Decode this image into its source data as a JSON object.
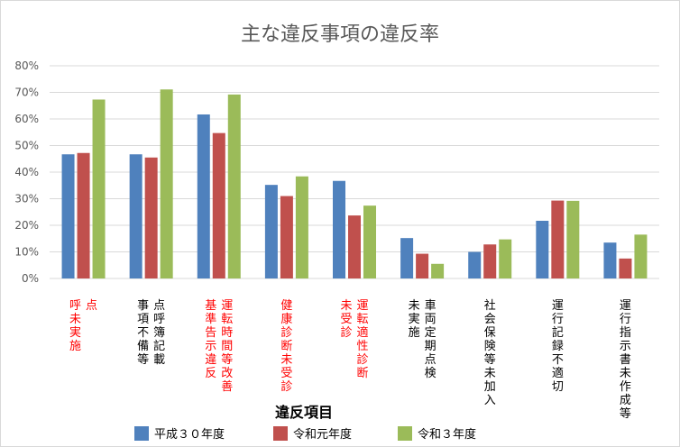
{
  "chart_data": {
    "type": "bar",
    "title": "主な違反事項の違反率",
    "xlabel": "違反項目",
    "ylabel": "",
    "ylim": [
      0,
      0.8
    ],
    "yticks": [
      "0%",
      "10%",
      "20%",
      "30%",
      "40%",
      "50%",
      "60%",
      "70%",
      "80%"
    ],
    "grid": true,
    "legend_position": "bottom",
    "categories": [
      {
        "lines": [
          "点",
          "呼未実施"
        ],
        "color": "#ff0000"
      },
      {
        "lines": [
          "点呼簿記載",
          "事項不備等"
        ],
        "color": "#000000"
      },
      {
        "lines": [
          "運転時間等改善",
          "基準告示違反"
        ],
        "color": "#ff0000"
      },
      {
        "lines": [
          "健康診断未受診"
        ],
        "color": "#ff0000"
      },
      {
        "lines": [
          "運転適性診断",
          "未受診"
        ],
        "color": "#ff0000"
      },
      {
        "lines": [
          "車両定期点検",
          "未実施"
        ],
        "color": "#000000"
      },
      {
        "lines": [
          "社会保険等未加入"
        ],
        "color": "#000000"
      },
      {
        "lines": [
          "運行記録不適切"
        ],
        "color": "#000000"
      },
      {
        "lines": [
          "運行指示書未作成等"
        ],
        "color": "#000000"
      }
    ],
    "series": [
      {
        "name": "平成３０年度",
        "color": "#4f81bd",
        "values": [
          0.467,
          0.467,
          0.617,
          0.352,
          0.367,
          0.152,
          0.1,
          0.217,
          0.135
        ]
      },
      {
        "name": "令和元年度",
        "color": "#c0504d",
        "values": [
          0.472,
          0.455,
          0.547,
          0.31,
          0.237,
          0.093,
          0.128,
          0.293,
          0.075
        ]
      },
      {
        "name": "令和３年度",
        "color": "#9bbb59",
        "values": [
          0.673,
          0.711,
          0.692,
          0.384,
          0.274,
          0.055,
          0.147,
          0.292,
          0.165
        ]
      }
    ]
  }
}
